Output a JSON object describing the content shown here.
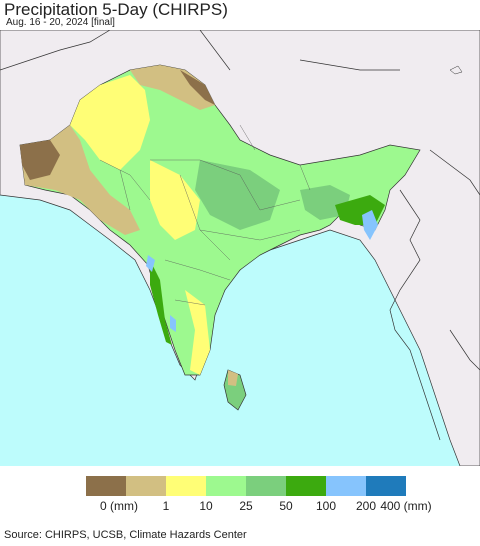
{
  "title": "Precipitation 5-Day (CHIRPS)",
  "subtitle": "Aug. 16 - 20, 2024 [final]",
  "legend": {
    "colors": [
      "#8c704a",
      "#d2bf82",
      "#fffe76",
      "#9df98f",
      "#7bcf7d",
      "#3caa0f",
      "#86c4fd",
      "#1f7bbb"
    ],
    "labels": [
      "0 (mm)",
      "1",
      "10",
      "25",
      "50",
      "100",
      "200",
      "400 (mm)"
    ]
  },
  "source": "Source: CHIRPS, UCSB, Climate Hazards Center",
  "map_colors": {
    "ocean": "#bdfcfc",
    "land_outside": "#f0ecf0",
    "borders": "#333333"
  }
}
